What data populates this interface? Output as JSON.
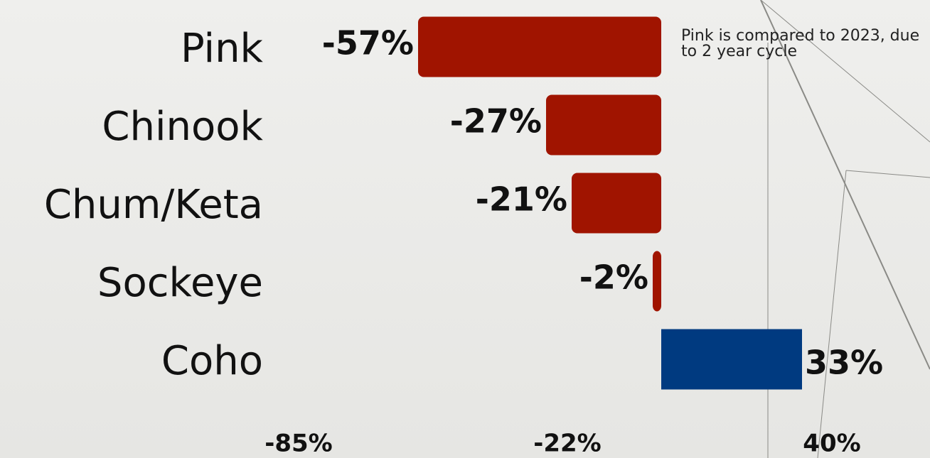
{
  "chart_data": {
    "type": "bar",
    "orientation": "horizontal",
    "categories": [
      "Pink",
      "Chinook",
      "Chum/Keta",
      "Sockeye",
      "Coho"
    ],
    "values": [
      -57,
      -27,
      -21,
      -2,
      33
    ],
    "value_labels": [
      "-57%",
      "-27%",
      "-21%",
      "-2%",
      "33%"
    ],
    "colors": [
      "#a01400",
      "#a01400",
      "#a01400",
      "#a01400",
      "#003a80"
    ],
    "xlim": [
      -85,
      40
    ],
    "xticks": [
      {
        "value": -85,
        "label": "-85%"
      },
      {
        "value": -22,
        "label": "-22%"
      },
      {
        "value": 40,
        "label": "40%"
      }
    ],
    "annotation": "Pink is compared to 2023, due to 2 year cycle",
    "grid": false
  }
}
